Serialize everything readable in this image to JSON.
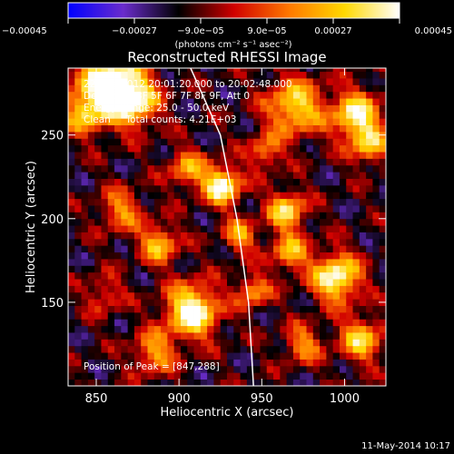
{
  "chart_data": {
    "type": "heatmap",
    "title": "Reconstructed RHESSI Image",
    "xlabel": "Heliocentric X (arcsec)",
    "ylabel": "Heliocentric Y (arcsec)",
    "xlim": [
      833,
      1025
    ],
    "ylim": [
      100,
      290
    ],
    "x_ticks": [
      {
        "value": 850,
        "label": "850"
      },
      {
        "value": 900,
        "label": "900"
      },
      {
        "value": 950,
        "label": "950"
      },
      {
        "value": 1000,
        "label": "1000"
      }
    ],
    "y_ticks": [
      {
        "value": 150,
        "label": "150"
      },
      {
        "value": 200,
        "label": "200"
      },
      {
        "value": 250,
        "label": "250"
      }
    ],
    "colorbar": {
      "range": [
        -0.00045,
        0.00045
      ],
      "unit_label": "(photons cm⁻² s⁻¹ asec⁻²)",
      "colors": [
        "#0000ff",
        "#6a2ccc",
        "#000000",
        "#d00000",
        "#ff7800",
        "#ffd800",
        "#ffffff"
      ],
      "ticks": [
        {
          "value": -0.00045,
          "label": "−0.00045"
        },
        {
          "value": -0.00027,
          "label": "−0.00027"
        },
        {
          "value": -9e-05,
          "label": "−9.0e−05"
        },
        {
          "value": 9e-05,
          "label": "9.0e−05"
        },
        {
          "value": 0.00027,
          "label": "0.00027"
        },
        {
          "value": 0.00045,
          "label": "0.00045"
        }
      ]
    },
    "annotations": [
      "22-Aug-2012 20:01:20.000 to 20:02:48.000",
      "Detectors: 3F 5F 6F 7F 8F 9F, Att 0",
      "Energy Range: 25.0 - 50.0 keV",
      "Clean     Total counts: 4.21E+03"
    ],
    "peak_label": "Position of Peak = [847,288]",
    "peak": [
      847,
      288
    ],
    "limb_curve": [
      [
        907,
        290
      ],
      [
        925,
        250
      ],
      [
        935,
        200
      ],
      [
        942,
        150
      ],
      [
        945,
        100
      ]
    ],
    "grid": false,
    "cell_size_arcsec": 4,
    "sources": [
      {
        "x": 858,
        "y": 282,
        "amp": 1.0,
        "w": 14
      },
      {
        "x": 873,
        "y": 270,
        "amp": 0.75,
        "w": 10
      },
      {
        "x": 843,
        "y": 263,
        "amp": 0.55,
        "w": 9
      },
      {
        "x": 905,
        "y": 230,
        "amp": 0.55,
        "w": 8
      },
      {
        "x": 926,
        "y": 220,
        "amp": 0.95,
        "w": 8
      },
      {
        "x": 970,
        "y": 267,
        "amp": 0.75,
        "w": 12
      },
      {
        "x": 1007,
        "y": 262,
        "amp": 0.85,
        "w": 10
      },
      {
        "x": 1015,
        "y": 244,
        "amp": 0.6,
        "w": 8
      },
      {
        "x": 865,
        "y": 205,
        "amp": 0.5,
        "w": 9
      },
      {
        "x": 888,
        "y": 185,
        "amp": 0.65,
        "w": 8
      },
      {
        "x": 937,
        "y": 190,
        "amp": 0.55,
        "w": 7
      },
      {
        "x": 965,
        "y": 205,
        "amp": 0.75,
        "w": 8
      },
      {
        "x": 967,
        "y": 180,
        "amp": 0.6,
        "w": 8
      },
      {
        "x": 995,
        "y": 165,
        "amp": 0.95,
        "w": 10
      },
      {
        "x": 908,
        "y": 145,
        "amp": 1.0,
        "w": 11
      },
      {
        "x": 885,
        "y": 120,
        "amp": 0.55,
        "w": 9
      },
      {
        "x": 945,
        "y": 157,
        "amp": 0.55,
        "w": 7
      },
      {
        "x": 1010,
        "y": 128,
        "amp": 0.7,
        "w": 9
      },
      {
        "x": 975,
        "y": 125,
        "amp": 0.5,
        "w": 8
      },
      {
        "x": 855,
        "y": 155,
        "amp": 0.35,
        "w": 8
      },
      {
        "x": 952,
        "y": 240,
        "amp": 0.5,
        "w": 7
      }
    ]
  },
  "footer": {
    "date": "11-May-2014 10:17"
  }
}
